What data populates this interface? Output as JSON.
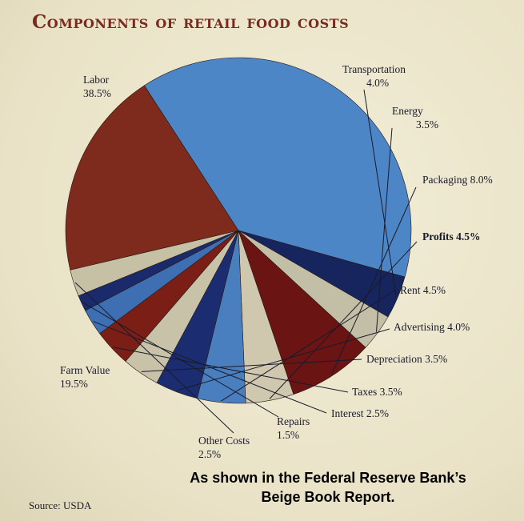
{
  "title": "Components of retail food costs",
  "source": "Source: USDA",
  "caption": {
    "line1": "As shown in the Federal Reserve Bank’s",
    "line2": "Beige Book Report."
  },
  "chart_data": {
    "type": "pie",
    "title": "Components of retail food costs",
    "legend": "none",
    "slices": [
      {
        "label": "Labor",
        "value": 38.5,
        "text": "38.5%",
        "color": "#4d86c6"
      },
      {
        "label": "Transportation",
        "value": 4.0,
        "text": "4.0%",
        "color": "#16255e"
      },
      {
        "label": "Energy",
        "value": 3.5,
        "text": "3.5%",
        "color": "#c3bea6"
      },
      {
        "label": "Packaging",
        "value": 8.0,
        "text": "8.0%",
        "color": "#6b1414"
      },
      {
        "label": "Profits",
        "value": 4.5,
        "text": "4.5%",
        "color": "#cfc8ae"
      },
      {
        "label": "Rent",
        "value": 4.5,
        "text": "4.5%",
        "color": "#4a7fbf"
      },
      {
        "label": "Advertising",
        "value": 4.0,
        "text": "4.0%",
        "color": "#1b2d70"
      },
      {
        "label": "Depreciation",
        "value": 3.5,
        "text": "3.5%",
        "color": "#c8c2a8"
      },
      {
        "label": "Taxes",
        "value": 3.5,
        "text": "3.5%",
        "color": "#7a1e16"
      },
      {
        "label": "Interest",
        "value": 2.5,
        "text": "2.5%",
        "color": "#3e6fb2"
      },
      {
        "label": "Repairs",
        "value": 1.5,
        "text": "1.5%",
        "color": "#1a2a6a"
      },
      {
        "label": "Other Costs",
        "value": 2.5,
        "text": "2.5%",
        "color": "#c6c0a4"
      },
      {
        "label": "Farm Value",
        "value": 19.5,
        "text": "19.5%",
        "color": "#7e2a1c"
      }
    ]
  }
}
